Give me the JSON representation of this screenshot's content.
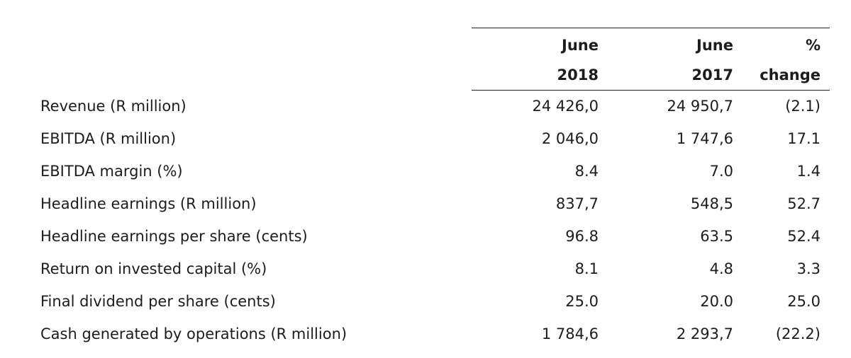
{
  "header": {
    "col1_line1": "June",
    "col1_line2": "2018",
    "col2_line1": "June",
    "col2_line2": "2017",
    "col3_line1": "%",
    "col3_line2": "change"
  },
  "rows": [
    {
      "label": "Revenue (R million)",
      "v2018": "24 426,0",
      "v2017": "24 950,7",
      "change": "(2.1)"
    },
    {
      "label": "EBITDA (R million)",
      "v2018": "2 046,0",
      "v2017": "1 747,6",
      "change": "17.1"
    },
    {
      "label": "EBITDA margin (%)",
      "v2018": "8.4",
      "v2017": "7.0",
      "change": "1.4"
    },
    {
      "label": "Headline earnings (R million)",
      "v2018": "837,7",
      "v2017": "548,5",
      "change": "52.7"
    },
    {
      "label": "Headline earnings per share (cents)",
      "v2018": "96.8",
      "v2017": "63.5",
      "change": "52.4"
    },
    {
      "label": "Return on invested capital (%)",
      "v2018": "8.1",
      "v2017": "4.8",
      "change": "3.3"
    },
    {
      "label": "Final dividend per share (cents)",
      "v2018": "25.0",
      "v2017": "20.0",
      "change": "25.0"
    },
    {
      "label": "Cash generated by operations (R million)",
      "v2018": "1 784,6",
      "v2017": "2 293,7",
      "change": "(22.2)"
    }
  ]
}
